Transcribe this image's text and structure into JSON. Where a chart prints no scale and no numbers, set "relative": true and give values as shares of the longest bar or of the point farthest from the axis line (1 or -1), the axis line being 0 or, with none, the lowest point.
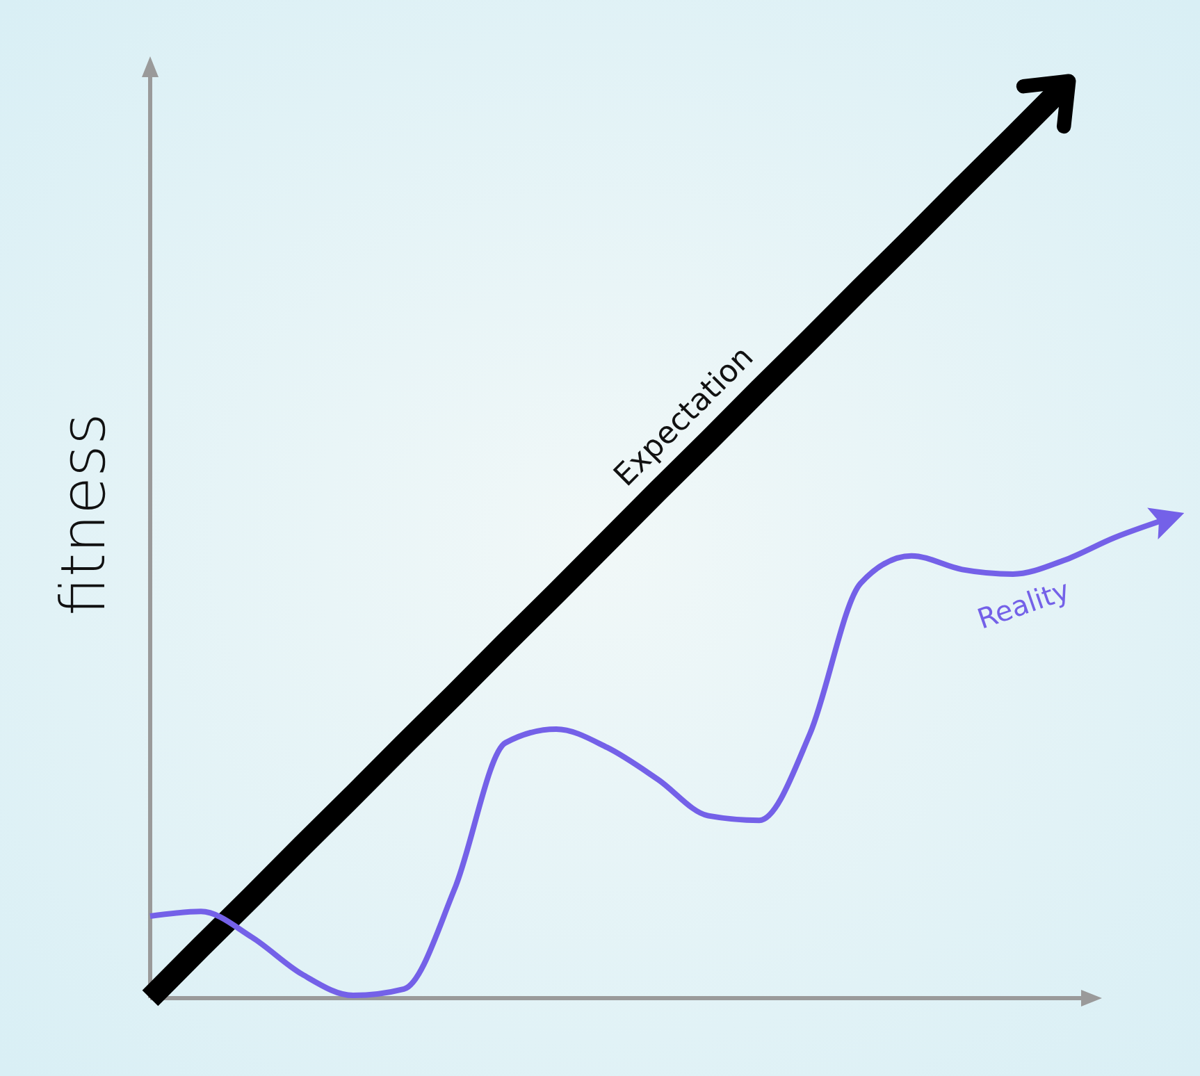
{
  "chart_data": {
    "type": "line",
    "ylabel": "fitness",
    "relative": true,
    "legend": false,
    "categories": [
      null,
      null,
      null,
      null,
      null,
      null,
      null,
      null,
      null,
      null,
      null,
      null,
      null,
      null,
      null,
      null,
      null,
      null,
      null,
      null,
      null
    ],
    "series": [
      {
        "name": "Expectation",
        "color": "#000000",
        "values": [
          0,
          0.056,
          0.111,
          0.167,
          0.222,
          0.278,
          0.333,
          0.389,
          0.444,
          0.5,
          0.556,
          0.611,
          0.667,
          0.722,
          0.778,
          0.833,
          0.889,
          0.944,
          1,
          null,
          null
        ]
      },
      {
        "name": "Reality",
        "color": "#7461e8",
        "values": [
          0.09,
          0.095,
          0.067,
          0.026,
          0.003,
          0.01,
          0.12,
          0.28,
          0.295,
          0.275,
          0.24,
          0.2,
          0.195,
          0.29,
          0.455,
          0.485,
          0.47,
          0.465,
          0.48,
          0.505,
          0.525
        ]
      }
    ]
  }
}
